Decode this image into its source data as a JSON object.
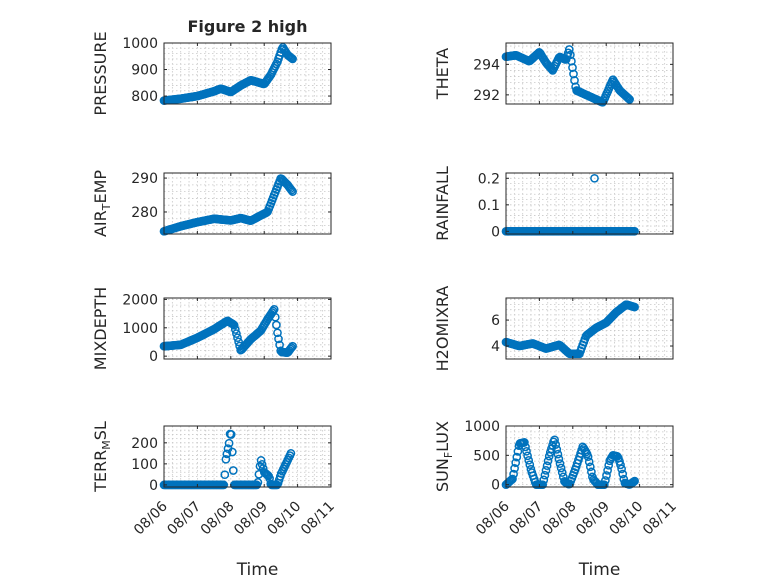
{
  "figure": {
    "accent_color": "#0072BD",
    "x_tick_labels": [
      "08/06",
      "08/07",
      "08/08",
      "08/09",
      "08/10",
      "08/11"
    ],
    "xlabel": "Time"
  },
  "chart_data": [
    {
      "type": "scatter",
      "title": "Figure 2 high",
      "ylabel": "PRESSURE",
      "ylim": [
        770,
        1000
      ],
      "yticks": [
        800,
        900,
        1000
      ],
      "xlim_days": [
        6,
        11
      ],
      "grid": true,
      "knots": [
        [
          6.0,
          783
        ],
        [
          6.5,
          790
        ],
        [
          7.0,
          800
        ],
        [
          7.5,
          818
        ],
        [
          7.7,
          828
        ],
        [
          8.0,
          815
        ],
        [
          8.3,
          840
        ],
        [
          8.6,
          860
        ],
        [
          9.0,
          845
        ],
        [
          9.2,
          880
        ],
        [
          9.4,
          930
        ],
        [
          9.55,
          985
        ],
        [
          9.7,
          955
        ],
        [
          9.85,
          940
        ]
      ]
    },
    {
      "type": "scatter",
      "ylabel": "THETA",
      "ylim": [
        291.4,
        295.4
      ],
      "yticks": [
        292,
        294
      ],
      "xlim_days": [
        6,
        11
      ],
      "grid": true,
      "knots": [
        [
          6.0,
          294.5
        ],
        [
          6.3,
          294.6
        ],
        [
          6.5,
          294.4
        ],
        [
          6.7,
          294.2
        ],
        [
          7.0,
          294.8
        ],
        [
          7.2,
          294.1
        ],
        [
          7.4,
          293.6
        ],
        [
          7.6,
          294.5
        ],
        [
          7.8,
          294.3
        ],
        [
          7.9,
          295.0
        ],
        [
          8.1,
          292.3
        ],
        [
          8.4,
          292.0
        ],
        [
          8.7,
          291.7
        ],
        [
          8.9,
          291.5
        ],
        [
          9.0,
          292.0
        ],
        [
          9.2,
          293.0
        ],
        [
          9.4,
          292.3
        ],
        [
          9.55,
          292.0
        ],
        [
          9.7,
          291.7
        ]
      ]
    },
    {
      "type": "scatter",
      "ylabel": "AIR_TEMP",
      "ylabel_main": "AIR",
      "ylabel_sub": "T",
      "ylabel_tail": "EMP",
      "ylim": [
        273.5,
        291.5
      ],
      "yticks": [
        280,
        290
      ],
      "xlim_days": [
        6,
        11
      ],
      "grid": true,
      "knots": [
        [
          6.0,
          274.3
        ],
        [
          6.5,
          275.8
        ],
        [
          7.0,
          277.0
        ],
        [
          7.5,
          278.0
        ],
        [
          8.0,
          277.5
        ],
        [
          8.3,
          278.2
        ],
        [
          8.6,
          277.4
        ],
        [
          8.9,
          279.0
        ],
        [
          9.1,
          280.0
        ],
        [
          9.3,
          285.0
        ],
        [
          9.5,
          290.0
        ],
        [
          9.7,
          288.0
        ],
        [
          9.85,
          286.0
        ]
      ]
    },
    {
      "type": "scatter",
      "ylabel": "RAINFALL",
      "ylim": [
        -0.01,
        0.22
      ],
      "yticks": [
        0,
        0.1,
        0.2
      ],
      "ytick_labels": [
        "0",
        "0.1",
        "0.2"
      ],
      "xlim_days": [
        6,
        11
      ],
      "grid": true,
      "knots": [
        [
          6.0,
          0
        ],
        [
          9.85,
          0
        ]
      ],
      "extra_points": [
        [
          8.65,
          0.2
        ]
      ]
    },
    {
      "type": "scatter",
      "ylabel": "MIXDEPTH",
      "ylim": [
        -100,
        2050
      ],
      "yticks": [
        0,
        1000,
        2000
      ],
      "xlim_days": [
        6,
        11
      ],
      "grid": true,
      "knots": [
        [
          6.0,
          350
        ],
        [
          6.5,
          400
        ],
        [
          7.0,
          650
        ],
        [
          7.5,
          950
        ],
        [
          7.9,
          1250
        ],
        [
          8.1,
          1100
        ],
        [
          8.2,
          650
        ],
        [
          8.3,
          200
        ],
        [
          8.6,
          600
        ],
        [
          8.9,
          900
        ],
        [
          9.1,
          1300
        ],
        [
          9.3,
          1650
        ],
        [
          9.4,
          800
        ],
        [
          9.5,
          150
        ],
        [
          9.7,
          120
        ],
        [
          9.85,
          350
        ]
      ]
    },
    {
      "type": "scatter",
      "ylabel": "H2OMIXRA",
      "ylim": [
        3.0,
        7.7
      ],
      "yticks": [
        4,
        6
      ],
      "xlim_days": [
        6,
        11
      ],
      "grid": true,
      "knots": [
        [
          6.0,
          4.3
        ],
        [
          6.4,
          4.0
        ],
        [
          6.8,
          4.2
        ],
        [
          7.2,
          3.8
        ],
        [
          7.6,
          4.1
        ],
        [
          7.9,
          3.4
        ],
        [
          8.2,
          3.4
        ],
        [
          8.4,
          4.8
        ],
        [
          8.7,
          5.4
        ],
        [
          9.0,
          5.8
        ],
        [
          9.3,
          6.6
        ],
        [
          9.6,
          7.2
        ],
        [
          9.85,
          7.0
        ]
      ]
    },
    {
      "type": "scatter",
      "ylabel": "TERR_MSL",
      "ylabel_main": "TERR",
      "ylabel_sub": "M",
      "ylabel_tail": "SL",
      "ylim": [
        -10,
        280
      ],
      "yticks": [
        0,
        100,
        200
      ],
      "xlim_days": [
        6,
        11
      ],
      "grid": true,
      "knots": [
        [
          6.0,
          0
        ],
        [
          7.8,
          0
        ],
        [
          7.85,
          120
        ],
        [
          7.95,
          200
        ],
        [
          8.0,
          270
        ],
        [
          8.05,
          140
        ],
        [
          8.1,
          0
        ],
        [
          8.8,
          0
        ],
        [
          8.9,
          120
        ],
        [
          9.0,
          60
        ],
        [
          9.15,
          40
        ],
        [
          9.2,
          0
        ],
        [
          9.4,
          0
        ],
        [
          9.5,
          50
        ],
        [
          9.65,
          100
        ],
        [
          9.8,
          150
        ]
      ]
    },
    {
      "type": "scatter",
      "ylabel": "SUN_FLUX",
      "ylabel_main": "SUN",
      "ylabel_sub": "F",
      "ylabel_tail": "LUX",
      "ylim": [
        -40,
        1000
      ],
      "yticks": [
        0,
        500,
        1000
      ],
      "xlim_days": [
        6,
        11
      ],
      "grid": true,
      "knots": [
        [
          6.0,
          0
        ],
        [
          6.2,
          100
        ],
        [
          6.4,
          700
        ],
        [
          6.55,
          720
        ],
        [
          6.75,
          250
        ],
        [
          6.9,
          0
        ],
        [
          7.1,
          0
        ],
        [
          7.3,
          500
        ],
        [
          7.45,
          780
        ],
        [
          7.6,
          400
        ],
        [
          7.75,
          50
        ],
        [
          7.9,
          0
        ],
        [
          8.1,
          300
        ],
        [
          8.3,
          650
        ],
        [
          8.45,
          500
        ],
        [
          8.6,
          100
        ],
        [
          8.75,
          0
        ],
        [
          8.95,
          0
        ],
        [
          9.1,
          400
        ],
        [
          9.2,
          500
        ],
        [
          9.35,
          480
        ],
        [
          9.45,
          300
        ],
        [
          9.55,
          30
        ],
        [
          9.7,
          0
        ],
        [
          9.85,
          60
        ]
      ]
    }
  ]
}
